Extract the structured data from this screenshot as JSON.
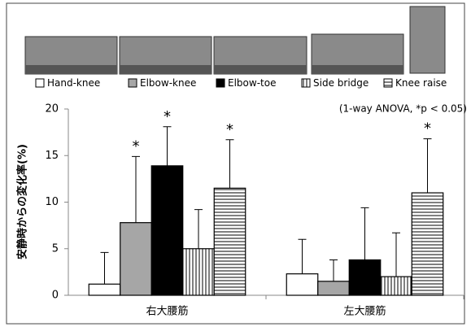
{
  "chart_data": {
    "type": "bar",
    "y_label": "安静時からの変化率(%)",
    "annotation": "(1-way ANOVA, *p < 0.05)",
    "significance_mark": "*",
    "categories": [
      "右大腰筋",
      "左大腰筋"
    ],
    "ylim": [
      0,
      20
    ],
    "yticks": [
      0,
      5,
      10,
      15,
      20
    ],
    "series": [
      {
        "name": "Hand-knee",
        "color": "#ffffff",
        "pattern": "none",
        "values": [
          1.2,
          2.3
        ],
        "errors": [
          3.4,
          3.7
        ],
        "significant": [
          false,
          false
        ]
      },
      {
        "name": "Elbow-knee",
        "color": "#a6a6a6",
        "pattern": "none",
        "values": [
          7.8,
          1.5
        ],
        "errors": [
          7.1,
          2.3
        ],
        "significant": [
          true,
          false
        ]
      },
      {
        "name": "Elbow-toe",
        "color": "#000000",
        "pattern": "none",
        "values": [
          13.9,
          3.8
        ],
        "errors": [
          4.2,
          5.6
        ],
        "significant": [
          true,
          false
        ]
      },
      {
        "name": "Side bridge",
        "color": "#ffffff",
        "pattern": "vertical",
        "values": [
          5.0,
          2.0
        ],
        "errors": [
          4.2,
          4.7
        ],
        "significant": [
          false,
          false
        ]
      },
      {
        "name": "Knee raise",
        "color": "#ffffff",
        "pattern": "horizontal",
        "values": [
          11.5,
          11.0
        ],
        "errors": [
          5.2,
          5.8
        ],
        "significant": [
          true,
          true
        ]
      }
    ]
  }
}
